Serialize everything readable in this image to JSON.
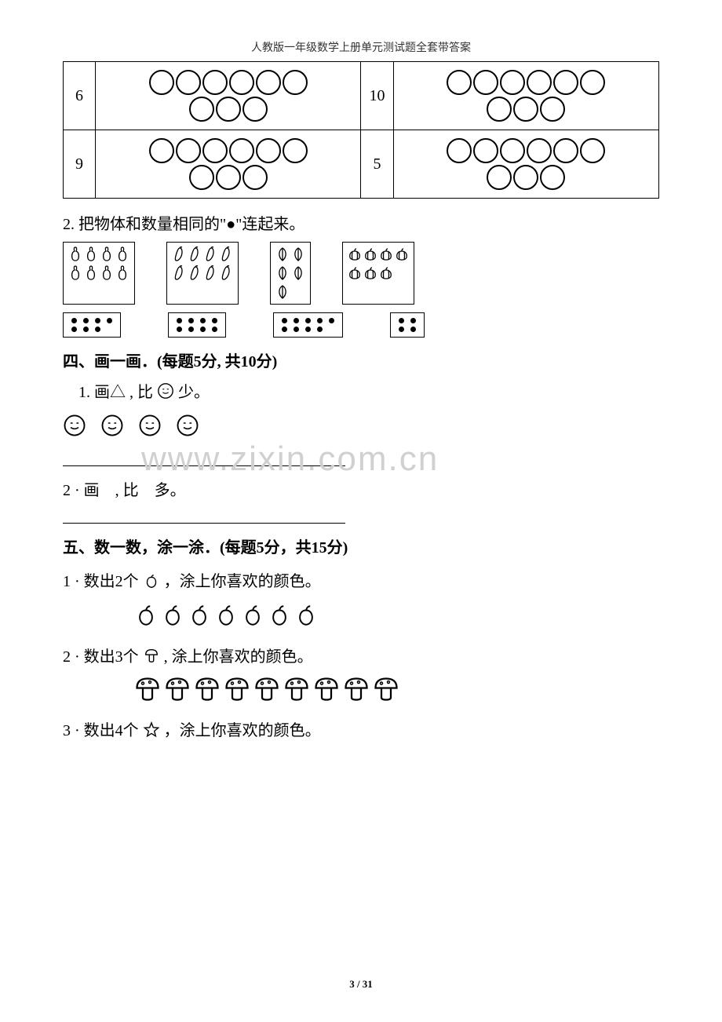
{
  "header": "人教版一年级数学上册单元测试题全套带答案",
  "circles_table": {
    "cells": [
      {
        "num": "6",
        "rows": [
          6,
          3
        ]
      },
      {
        "num": "10",
        "rows": [
          6,
          3
        ]
      },
      {
        "num": "9",
        "rows": [
          6,
          3
        ]
      },
      {
        "num": "5",
        "rows": [
          6,
          3
        ]
      }
    ],
    "circle_stroke": "#000000",
    "circle_diameter": 32
  },
  "q2_text": "2. 把物体和数量相同的\"●\"连起来。",
  "match_pics": [
    {
      "type": "gourd",
      "rows": [
        4,
        4
      ]
    },
    {
      "type": "pepper",
      "rows": [
        4,
        4
      ]
    },
    {
      "type": "leaf",
      "rows": [
        2,
        2,
        1
      ]
    },
    {
      "type": "pumpkin",
      "rows": [
        4,
        3
      ]
    }
  ],
  "dot_boxes": [
    {
      "rows": [
        4,
        3
      ]
    },
    {
      "rows": [
        4,
        4
      ]
    },
    {
      "rows": [
        5,
        4
      ]
    },
    {
      "rows": [
        2,
        2
      ]
    }
  ],
  "section4": {
    "title": "四、画一画．(每题5分, 共10分)",
    "q1_prefix": "1. 画△ , 比",
    "q1_suffix": "少。",
    "smile_count": 4,
    "q2": "2 · 画　, 比　多。"
  },
  "section5": {
    "title": "五、数一数，涂一涂．(每题5分，共15分)",
    "q1_prefix": "1 · 数出2个",
    "q1_suffix": "，涂上你喜欢的颜色。",
    "apple_count": 7,
    "q2_prefix": "2 · 数出3个",
    "q2_suffix": ", 涂上你喜欢的颜色。",
    "mushroom_count": 9,
    "q3_prefix": "3 · 数出4个",
    "q3_suffix": "，涂上你喜欢的颜色。"
  },
  "watermark": "www.zixin.com.cn",
  "page_number": "3 / 31",
  "colors": {
    "text": "#000000",
    "watermark": "#d0d0d0",
    "background": "#ffffff",
    "border": "#000000"
  }
}
